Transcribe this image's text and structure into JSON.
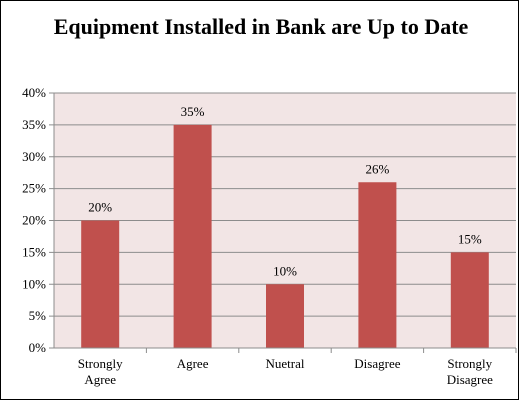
{
  "chart_data": {
    "type": "bar",
    "title": "Equipment Installed in Bank are Up to Date",
    "categories": [
      "Strongly Agree",
      "Agree",
      "Nuetral",
      "Disagree",
      "Strongly Disagree"
    ],
    "values": [
      20,
      35,
      10,
      26,
      15
    ],
    "data_labels": [
      "20%",
      "35%",
      "10%",
      "26%",
      "15%"
    ],
    "ylim": [
      0,
      40
    ],
    "yticks": [
      0,
      5,
      10,
      15,
      20,
      25,
      30,
      35,
      40
    ],
    "ytick_labels": [
      "0%",
      "5%",
      "10%",
      "15%",
      "20%",
      "25%",
      "30%",
      "35%",
      "40%"
    ],
    "xlabel": "",
    "ylabel": "",
    "grid": true,
    "legend": "none",
    "bar_color": "#c0504d",
    "plot_background": "#f2e5e5"
  }
}
